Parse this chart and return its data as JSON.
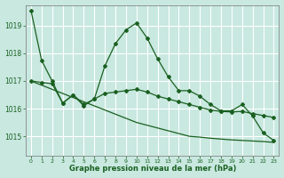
{
  "background_color": "#c8e8e0",
  "grid_color": "#ffffff",
  "line_color": "#1a6020",
  "x_ticks": [
    0,
    1,
    2,
    3,
    4,
    5,
    6,
    7,
    8,
    9,
    10,
    11,
    12,
    13,
    14,
    15,
    16,
    17,
    18,
    19,
    20,
    21,
    22,
    23
  ],
  "y_ticks": [
    1015,
    1016,
    1017,
    1018,
    1019
  ],
  "ylim": [
    1014.3,
    1019.75
  ],
  "xlim": [
    -0.5,
    23.5
  ],
  "xlabel": "Graphe pression niveau de la mer (hPa)",
  "series_wavy": [
    1019.55,
    1017.75,
    1017.0,
    1016.2,
    1016.5,
    1016.15,
    1016.35,
    1017.55,
    1018.35,
    1018.85,
    1019.1,
    1018.55,
    1017.8,
    1017.15,
    1016.65,
    1016.65,
    1016.45,
    1016.15,
    1015.92,
    1015.92,
    1016.15,
    1015.73,
    1015.12,
    1014.85
  ],
  "series_flat": [
    1017.0,
    1016.95,
    1016.9,
    1016.2,
    1016.5,
    1016.1,
    1016.35,
    1016.55,
    1016.6,
    1016.65,
    1016.7,
    1016.6,
    1016.45,
    1016.35,
    1016.25,
    1016.15,
    1016.05,
    1015.95,
    1015.9,
    1015.88,
    1015.9,
    1015.82,
    1015.75,
    1015.68
  ],
  "series_trend": [
    1017.0,
    1016.85,
    1016.7,
    1016.55,
    1016.4,
    1016.25,
    1016.1,
    1015.95,
    1015.8,
    1015.65,
    1015.5,
    1015.4,
    1015.3,
    1015.2,
    1015.1,
    1015.0,
    1014.97,
    1014.93,
    1014.9,
    1014.87,
    1014.85,
    1014.83,
    1014.81,
    1014.78
  ]
}
